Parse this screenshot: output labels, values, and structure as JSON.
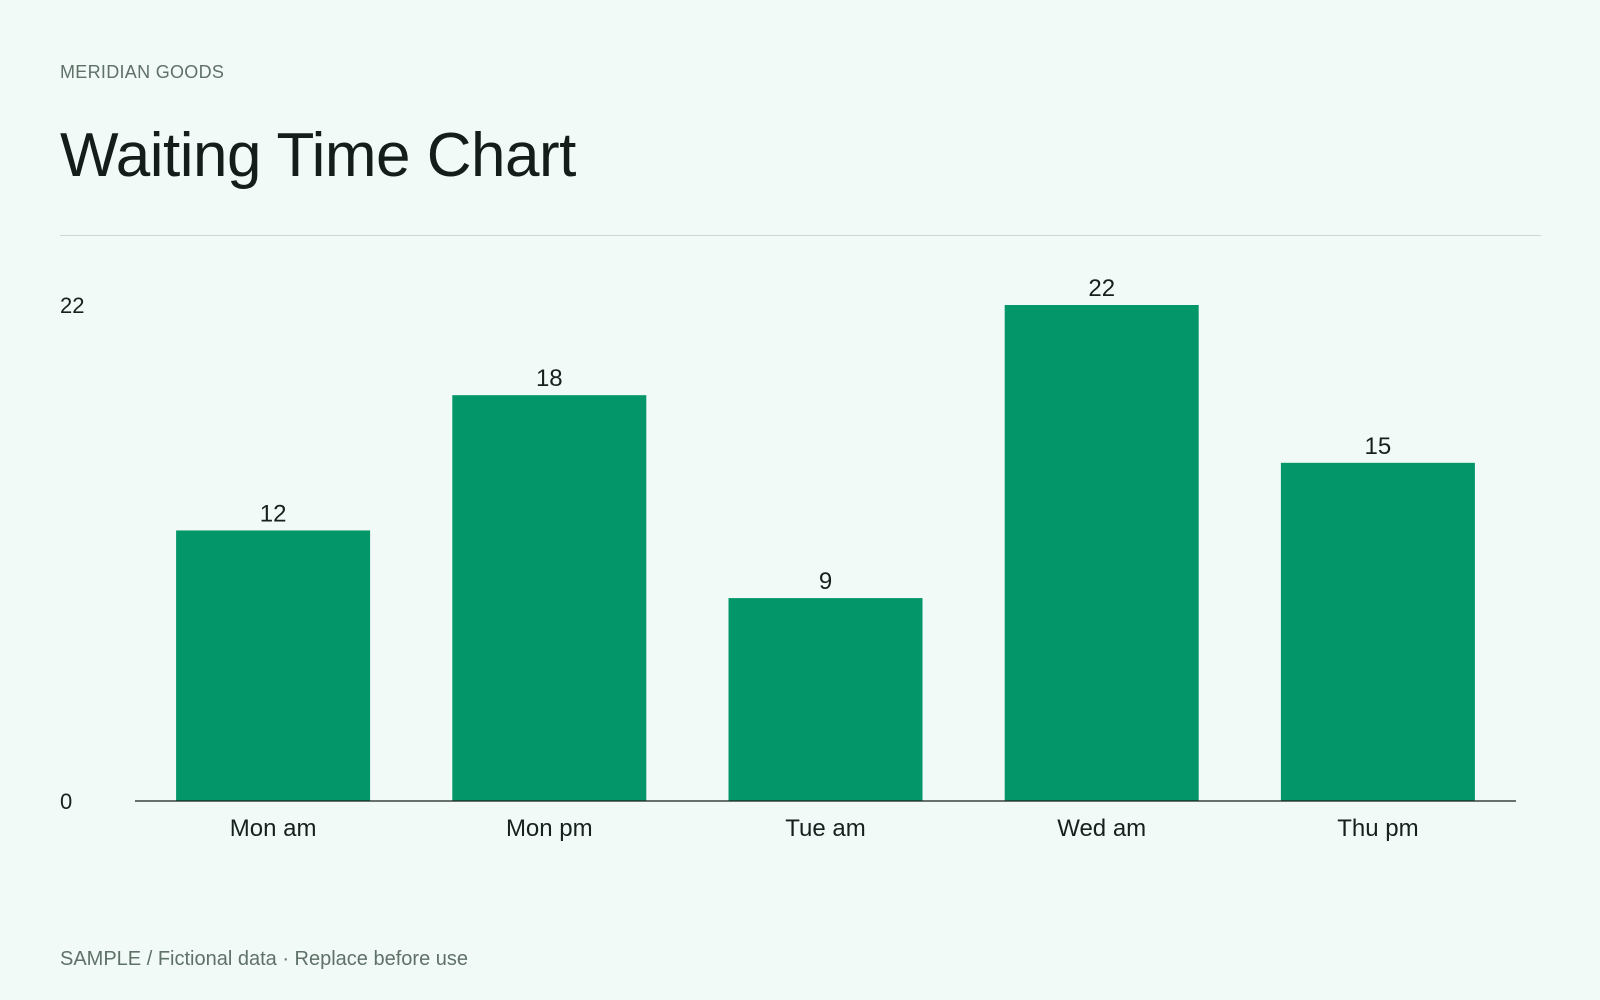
{
  "header": {
    "brand": "MERIDIAN GOODS",
    "title": "Waiting Time Chart"
  },
  "footer": {
    "note": "SAMPLE / Fictional data · Replace before use"
  },
  "colors": {
    "bar": "#039669",
    "axis": "#1b1f1d",
    "text": "#16201c"
  },
  "chart_data": {
    "type": "bar",
    "categories": [
      "Mon am",
      "Mon pm",
      "Tue am",
      "Wed am",
      "Thu pm"
    ],
    "values": [
      12,
      18,
      9,
      22,
      15
    ],
    "title": "Waiting Time Chart",
    "xlabel": "",
    "ylabel": "",
    "ylim": [
      0,
      22
    ],
    "yticks": [
      0,
      22
    ],
    "grid": false,
    "legend": "none",
    "data_labels": true
  }
}
